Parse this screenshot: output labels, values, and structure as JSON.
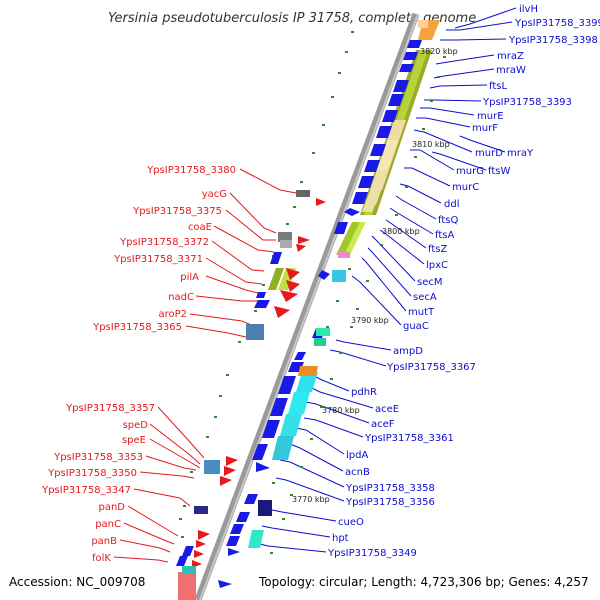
{
  "title": "Yersinia pseudotuberculosis IP 31758, complete genome",
  "accession": "Accession: NC_009708",
  "topology": "Topology: circular; Length: 4,723,306 bp; Genes: 4,257",
  "colors": {
    "forward_label": "#e41a1c",
    "reverse_label": "#0d0dcc",
    "backbone": "#888888"
  },
  "scale": [
    "3820 kbp",
    "3810 kbp",
    "3800 kbp",
    "3790 kbp",
    "3780 kbp",
    "3770 kbp"
  ],
  "left_labels": [
    "YpsIP31758_3380",
    "yacG",
    "YpsIP31758_3375",
    "coaE",
    "YpsIP31758_3372",
    "YpsIP31758_3371",
    "pilA",
    "nadC",
    "aroP2",
    "YpsIP31758_3365",
    "YpsIP31758_3357",
    "speD",
    "speE",
    "YpsIP31758_3353",
    "YpsIP31758_3350",
    "YpsIP31758_3347",
    "panD",
    "panC",
    "panB",
    "folK"
  ],
  "right_labels": [
    "ilvH",
    "YpsIP31758_3399",
    "YpsIP31758_3398",
    "mraZ",
    "mraW",
    "ftsL",
    "YpsIP31758_3393",
    "murE",
    "murF",
    "murD",
    "mraY",
    "murG",
    "ftsW",
    "murC",
    "ddl",
    "ftsQ",
    "ftsA",
    "ftsZ",
    "lpxC",
    "secM",
    "secA",
    "mutT",
    "guaC",
    "ampD",
    "YpsIP31758_3367",
    "pdhR",
    "aceE",
    "aceF",
    "YpsIP31758_3361",
    "lpdA",
    "acnB",
    "YpsIP31758_3358",
    "YpsIP31758_3356",
    "cueO",
    "hpt",
    "YpsIP31758_3349"
  ]
}
